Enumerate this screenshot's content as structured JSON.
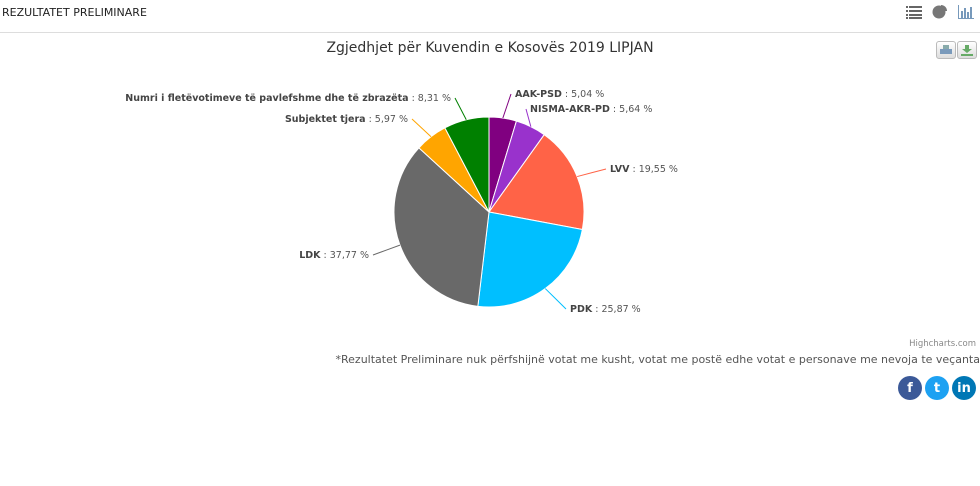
{
  "header": {
    "title": "REZULTATET PRELIMINARE",
    "icons": [
      "list-icon",
      "pie-icon",
      "bar-chart-icon"
    ]
  },
  "chart_data": {
    "type": "pie",
    "title": "Zgjedhjet për Kuvendin e Kosovës 2019 LIPJAN",
    "slices": [
      {
        "name": "AAK-PSD",
        "value": 5.04,
        "label": "5,04 %",
        "color": "#800080"
      },
      {
        "name": "NISMA-AKR-PD",
        "value": 5.64,
        "label": "5,64 %",
        "color": "#9932CC"
      },
      {
        "name": "LVV",
        "value": 19.55,
        "label": "19,55 %",
        "color": "#FF6347"
      },
      {
        "name": "PDK",
        "value": 25.87,
        "label": "25,87 %",
        "color": "#00BFFF"
      },
      {
        "name": "LDK",
        "value": 37.77,
        "label": "37,77 %",
        "color": "#696969"
      },
      {
        "name": "Subjektet tjera",
        "value": 5.97,
        "label": "5,97 %",
        "color": "#FFA500"
      },
      {
        "name": "Numri i fletëvotimeve të pavlefshme dhe të zbrazëta",
        "value": 8.31,
        "label": "8,31 %",
        "color": "#008000"
      }
    ]
  },
  "credit": "Highcharts.com",
  "note": "*Rezultatet Preliminare nuk përfshijnë votat me kusht, votat me postë edhe votat e personave me nevoja te veçanta",
  "social": {
    "facebook": "f",
    "twitter": "t",
    "linkedin": "in"
  }
}
